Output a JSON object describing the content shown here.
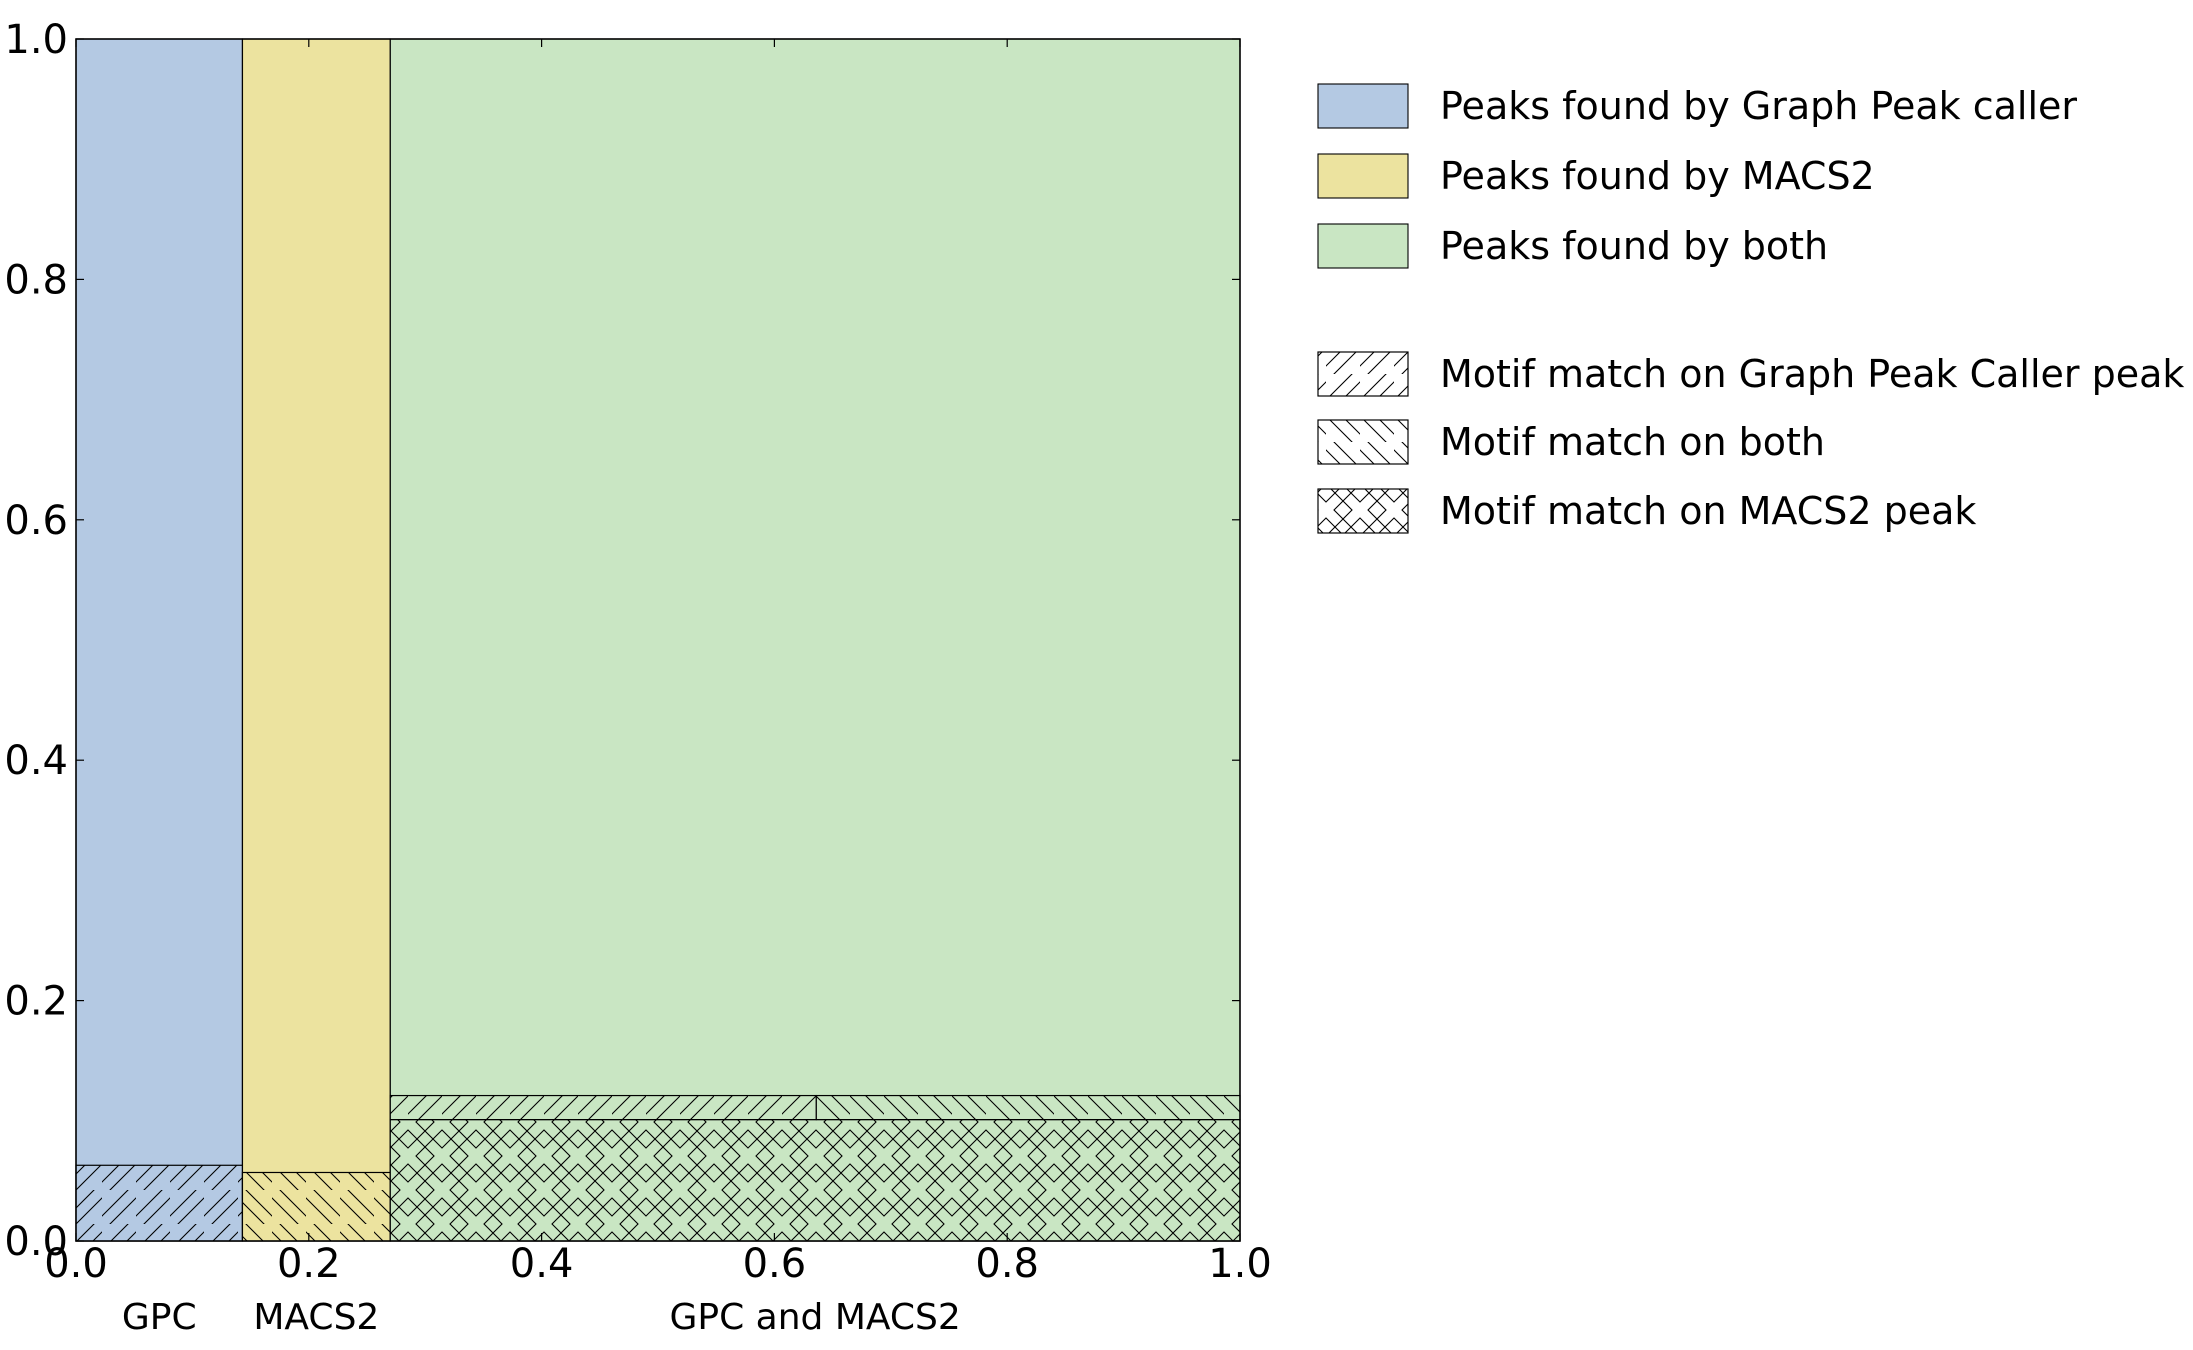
{
  "chart_data": {
    "type": "mosaic",
    "xlim": [
      0,
      1
    ],
    "ylim": [
      0,
      1
    ],
    "x_ticks": [
      "0.0",
      "0.2",
      "0.4",
      "0.6",
      "0.8",
      "1.0"
    ],
    "y_ticks": [
      "0.0",
      "0.2",
      "0.4",
      "0.6",
      "0.8",
      "1.0"
    ],
    "grid": false,
    "legend_position": "right",
    "groups": [
      {
        "label": "GPC",
        "x_start": 0.0,
        "x_end": 0.143,
        "color": "#b4c9e3",
        "segments": [
          {
            "y_start": 0.0,
            "y_end": 0.063,
            "hatch": "forward"
          }
        ]
      },
      {
        "label": "MACS2",
        "x_start": 0.143,
        "x_end": 0.27,
        "color": "#ece39f",
        "segments": [
          {
            "y_start": 0.0,
            "y_end": 0.057,
            "hatch": "backward"
          }
        ]
      },
      {
        "label": "GPC and MACS2",
        "x_start": 0.27,
        "x_end": 1.0,
        "color": "#c9e6c3",
        "segments": [
          {
            "x_start": 0.27,
            "x_end": 1.0,
            "y_start": 0.0,
            "y_end": 0.101,
            "hatch": "cross"
          },
          {
            "x_start": 0.27,
            "x_end": 0.636,
            "y_start": 0.101,
            "y_end": 0.121,
            "hatch": "forward"
          },
          {
            "x_start": 0.636,
            "x_end": 1.0,
            "y_start": 0.101,
            "y_end": 0.121,
            "hatch": "backward"
          }
        ]
      }
    ],
    "legend": [
      {
        "label": "Peaks found by Graph Peak caller",
        "color": "#b4c9e3",
        "hatch": "none"
      },
      {
        "label": "Peaks found by MACS2",
        "color": "#ece39f",
        "hatch": "none"
      },
      {
        "label": "Peaks found by both",
        "color": "#c9e6c3",
        "hatch": "none"
      },
      {
        "label": "Motif match on Graph Peak Caller peak",
        "color": "#ffffff",
        "hatch": "forward"
      },
      {
        "label": "Motif match on both",
        "color": "#ffffff",
        "hatch": "backward"
      },
      {
        "label": "Motif match on MACS2 peak",
        "color": "#ffffff",
        "hatch": "cross"
      }
    ]
  }
}
